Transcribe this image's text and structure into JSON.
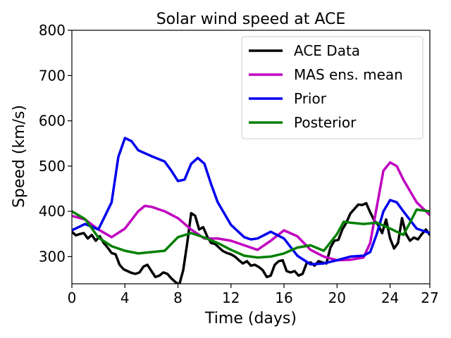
{
  "chart_data": {
    "type": "line",
    "title": "Solar wind speed at ACE",
    "xlabel": "Time (days)",
    "ylabel": "Speed (km/s)",
    "xlim": [
      0,
      27
    ],
    "ylim": [
      240,
      800
    ],
    "xticks": [
      0,
      4,
      8,
      12,
      16,
      20,
      24,
      27
    ],
    "xtick_labels": [
      "0",
      "4",
      "8",
      "12",
      "16",
      "20",
      "24",
      "27"
    ],
    "yticks": [
      300,
      400,
      500,
      600,
      700,
      800
    ],
    "ytick_labels": [
      "300",
      "400",
      "500",
      "600",
      "700",
      "800"
    ],
    "grid": false,
    "legend_position": "top-right",
    "series": [
      {
        "name": "ACE Data",
        "color": "#000000",
        "x": [
          0,
          0.3,
          0.6,
          0.9,
          1.2,
          1.5,
          1.8,
          2.1,
          2.4,
          2.7,
          3.0,
          3.3,
          3.6,
          3.9,
          4.2,
          4.5,
          4.8,
          5.1,
          5.4,
          5.7,
          6.0,
          6.3,
          6.6,
          6.9,
          7.2,
          7.5,
          7.8,
          8.1,
          8.4,
          8.7,
          9.0,
          9.3,
          9.6,
          9.9,
          10.2,
          10.5,
          10.8,
          11.1,
          11.4,
          11.7,
          12.0,
          12.3,
          12.6,
          12.9,
          13.2,
          13.5,
          13.8,
          14.1,
          14.4,
          14.7,
          15.0,
          15.3,
          15.6,
          15.9,
          16.2,
          16.5,
          16.8,
          17.1,
          17.4,
          17.7,
          18.0,
          18.3,
          18.6,
          18.9,
          19.2,
          19.5,
          19.8,
          20.1,
          20.4,
          20.7,
          21.0,
          21.3,
          21.6,
          21.9,
          22.2,
          22.5,
          22.8,
          23.1,
          23.4,
          23.7,
          24.0,
          24.3,
          24.6,
          24.9,
          25.2,
          25.5,
          25.8,
          26.1,
          26.4,
          26.7,
          27.0
        ],
        "values": [
          355,
          347,
          350,
          352,
          340,
          348,
          335,
          345,
          330,
          320,
          308,
          305,
          282,
          272,
          268,
          264,
          262,
          265,
          278,
          282,
          268,
          255,
          258,
          265,
          262,
          252,
          244,
          238,
          270,
          330,
          396,
          390,
          360,
          365,
          345,
          330,
          328,
          320,
          312,
          308,
          305,
          300,
          292,
          285,
          290,
          280,
          282,
          277,
          270,
          255,
          258,
          282,
          290,
          292,
          268,
          265,
          268,
          258,
          262,
          285,
          287,
          280,
          290,
          287,
          285,
          320,
          335,
          337,
          360,
          375,
          395,
          405,
          415,
          414,
          418,
          398,
          380,
          370,
          352,
          382,
          340,
          318,
          330,
          385,
          350,
          335,
          342,
          338,
          350,
          360,
          348
        ]
      },
      {
        "name": "MAS ens. mean",
        "color": "#c000c0",
        "x": [
          0,
          1,
          2,
          3,
          4,
          5,
          5.5,
          6,
          7,
          8,
          9,
          10,
          11,
          12,
          13,
          14,
          15,
          16,
          17,
          18,
          19,
          20,
          21,
          22,
          22.5,
          23,
          23.5,
          24,
          24.5,
          25,
          26,
          27
        ],
        "values": [
          390,
          382,
          360,
          343,
          362,
          400,
          412,
          410,
          400,
          385,
          360,
          340,
          340,
          335,
          325,
          315,
          335,
          358,
          345,
          315,
          300,
          292,
          293,
          298,
          330,
          410,
          490,
          508,
          500,
          470,
          420,
          392
        ]
      },
      {
        "name": "Prior",
        "color": "#0000ee",
        "x": [
          0,
          1,
          2,
          3,
          3.5,
          4,
          4.5,
          5,
          6,
          7,
          7.5,
          8,
          8.5,
          9,
          9.5,
          10,
          10.5,
          11,
          12,
          13,
          13.5,
          14,
          15,
          16,
          17,
          18,
          19,
          20,
          21,
          22,
          22.5,
          23,
          23.5,
          24,
          24.5,
          25,
          26,
          27
        ],
        "values": [
          358,
          372,
          360,
          420,
          520,
          562,
          555,
          535,
          522,
          510,
          490,
          467,
          470,
          505,
          518,
          505,
          460,
          420,
          370,
          343,
          338,
          340,
          355,
          340,
          302,
          283,
          285,
          292,
          300,
          302,
          310,
          350,
          400,
          425,
          420,
          400,
          362,
          352
        ]
      },
      {
        "name": "Posterior",
        "color": "#008000",
        "x": [
          0,
          1,
          2,
          3,
          4,
          5,
          6,
          7,
          8,
          9,
          10,
          11,
          12,
          13,
          14,
          15,
          16,
          17,
          18,
          19,
          20,
          20.5,
          21,
          22,
          23,
          24,
          25,
          25.5,
          26,
          27
        ],
        "values": [
          400,
          383,
          342,
          323,
          313,
          307,
          310,
          313,
          343,
          352,
          342,
          330,
          315,
          302,
          298,
          300,
          307,
          320,
          325,
          313,
          350,
          377,
          375,
          372,
          375,
          362,
          348,
          375,
          404,
          400
        ]
      }
    ]
  }
}
